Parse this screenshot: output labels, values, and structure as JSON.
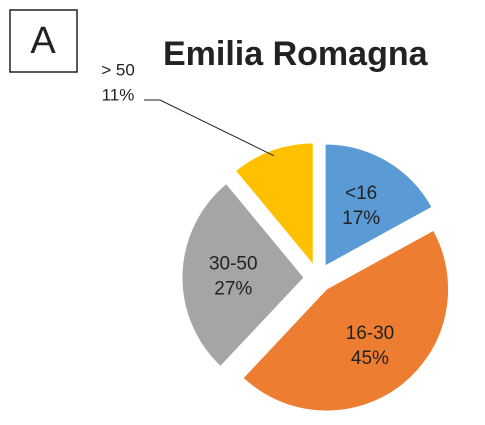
{
  "panel_label": "A",
  "chart_data": {
    "type": "pie",
    "title": "Emilia Romagna",
    "categories": [
      "<16",
      "16-30",
      "30-50",
      "> 50"
    ],
    "values": [
      17,
      45,
      27,
      11
    ],
    "value_labels": [
      "17%",
      "45%",
      "27%",
      "11%"
    ],
    "colors": [
      "#5b9bd5",
      "#ed7d31",
      "#a5a5a5",
      "#ffc000"
    ]
  }
}
